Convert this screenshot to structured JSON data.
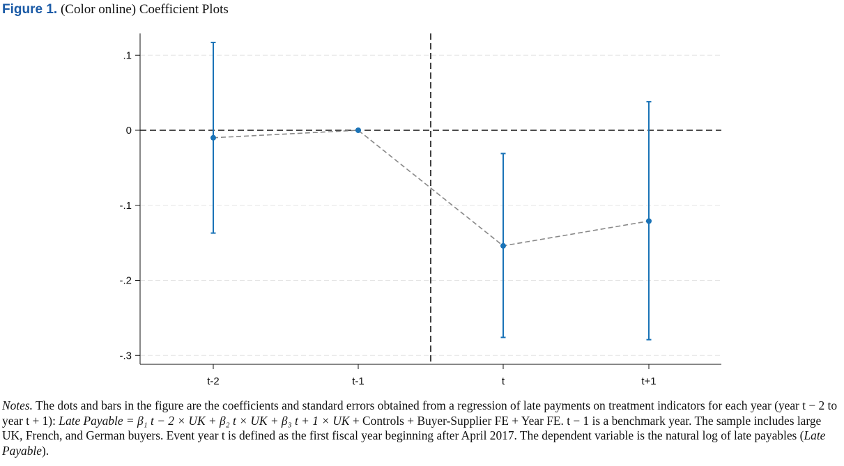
{
  "figure": {
    "label": "Figure 1.",
    "caption": "(Color online) Coefficient Plots"
  },
  "chart_data": {
    "type": "scatter",
    "categories": [
      "t-2",
      "t-1",
      "t",
      "t+1"
    ],
    "series": [
      {
        "coefficients": [
          -0.01,
          0.0,
          -0.154,
          -0.121
        ],
        "ci_low": [
          -0.137,
          0.0,
          -0.276,
          -0.279
        ],
        "ci_high": [
          0.117,
          0.0,
          -0.031,
          0.038
        ]
      }
    ],
    "ylim": [
      -0.31,
      0.126
    ],
    "yticks": [
      0.1,
      0,
      -0.1,
      -0.2,
      -0.3
    ],
    "ytick_labels": [
      ".1",
      "0",
      "-.1",
      "-.2",
      "-.3"
    ],
    "reference_line_y": 0,
    "event_line_between": [
      "t-1",
      "t"
    ],
    "colors": {
      "points": "#1a73b7",
      "connector": "#888888",
      "reference": "#111111"
    },
    "grid": true,
    "xlabel": "",
    "ylabel": ""
  },
  "notes": {
    "label": "Notes.",
    "text1": "The dots and bars in the figure are the coefficients and standard errors obtained from a regression of late payments on treatment indicators for each year (year t − 2 to year t + 1):",
    "equation": "Late Payable = β₁ t − 2 × UK + β₂ t × UK + β₃ t + 1 × UK",
    "text2": "+ Controls + Buyer-Supplier FE + Year FE. t − 1 is a benchmark year. The sample includes large UK, French, and German buyers. Event year t is defined as the first fiscal year beginning after April 2017. The dependent variable is the natural log of late payables (",
    "dv": "Late Payable",
    "text3": ")."
  }
}
